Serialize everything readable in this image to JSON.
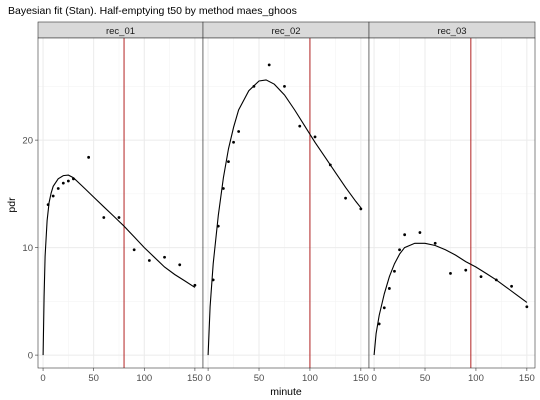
{
  "chart_data": {
    "type": "scatter",
    "title": "Bayesian fit (Stan). Half-emptying t50 by method maes_ghoos",
    "xlabel": "minute",
    "ylabel": "pdr",
    "xlim": [
      -5,
      158
    ],
    "ylim": [
      -1.2,
      29.5
    ],
    "x_ticks": [
      0,
      50,
      100,
      150
    ],
    "y_ticks": [
      0,
      10,
      20
    ],
    "grid": true,
    "colors": {
      "points": "#000000",
      "fit": "#000000",
      "t50_line": "#b22222",
      "strip_bg": "#d9d9d9",
      "grid": "#ebebeb"
    },
    "facets": [
      {
        "name": "rec_01",
        "t50": 80,
        "points": [
          [
            5,
            14
          ],
          [
            10,
            14.8
          ],
          [
            15,
            15.5
          ],
          [
            20,
            16
          ],
          [
            25,
            16.2
          ],
          [
            30,
            16.4
          ],
          [
            45,
            18.4
          ],
          [
            60,
            12.8
          ],
          [
            75,
            12.8
          ],
          [
            90,
            9.8
          ],
          [
            105,
            8.8
          ],
          [
            120,
            9.1
          ],
          [
            135,
            8.4
          ],
          [
            150,
            6.5
          ]
        ],
        "fit": [
          [
            0,
            0
          ],
          [
            1,
            5.5
          ],
          [
            2,
            9.2
          ],
          [
            4,
            12.5
          ],
          [
            6,
            14.2
          ],
          [
            8,
            15.1
          ],
          [
            10,
            15.7
          ],
          [
            15,
            16.4
          ],
          [
            20,
            16.7
          ],
          [
            25,
            16.75
          ],
          [
            30,
            16.5
          ],
          [
            40,
            15.6
          ],
          [
            50,
            14.7
          ],
          [
            60,
            13.8
          ],
          [
            70,
            12.9
          ],
          [
            80,
            12
          ],
          [
            90,
            11
          ],
          [
            100,
            10
          ],
          [
            110,
            9.1
          ],
          [
            120,
            8.2
          ],
          [
            130,
            7.5
          ],
          [
            140,
            6.9
          ],
          [
            150,
            6.3
          ]
        ]
      },
      {
        "name": "rec_02",
        "t50": 100,
        "points": [
          [
            5,
            7
          ],
          [
            10,
            12
          ],
          [
            15,
            15.5
          ],
          [
            20,
            18
          ],
          [
            25,
            19.8
          ],
          [
            30,
            20.8
          ],
          [
            45,
            25
          ],
          [
            60,
            27
          ],
          [
            75,
            25
          ],
          [
            90,
            21.3
          ],
          [
            105,
            20.3
          ],
          [
            120,
            17.7
          ],
          [
            135,
            14.6
          ],
          [
            150,
            13.6
          ]
        ],
        "fit": [
          [
            0,
            0
          ],
          [
            2,
            4.5
          ],
          [
            5,
            8.5
          ],
          [
            10,
            13
          ],
          [
            15,
            16.5
          ],
          [
            20,
            19.2
          ],
          [
            25,
            21.2
          ],
          [
            30,
            22.8
          ],
          [
            40,
            24.6
          ],
          [
            50,
            25.5
          ],
          [
            57,
            25.6
          ],
          [
            65,
            25.2
          ],
          [
            75,
            24.2
          ],
          [
            85,
            22.8
          ],
          [
            95,
            21.3
          ],
          [
            105,
            19.8
          ],
          [
            115,
            18.4
          ],
          [
            125,
            17
          ],
          [
            135,
            15.6
          ],
          [
            145,
            14.3
          ],
          [
            150,
            13.7
          ]
        ]
      },
      {
        "name": "rec_03",
        "t50": 95,
        "points": [
          [
            5,
            2.9
          ],
          [
            10,
            4.4
          ],
          [
            15,
            6.2
          ],
          [
            20,
            7.8
          ],
          [
            25,
            9.8
          ],
          [
            30,
            11.2
          ],
          [
            45,
            11.4
          ],
          [
            60,
            10.4
          ],
          [
            75,
            7.6
          ],
          [
            90,
            7.9
          ],
          [
            105,
            7.3
          ],
          [
            120,
            7
          ],
          [
            135,
            6.4
          ],
          [
            150,
            4.5
          ]
        ],
        "fit": [
          [
            0,
            0
          ],
          [
            2,
            2
          ],
          [
            5,
            3.7
          ],
          [
            10,
            5.7
          ],
          [
            15,
            7.3
          ],
          [
            20,
            8.5
          ],
          [
            25,
            9.4
          ],
          [
            30,
            10
          ],
          [
            40,
            10.4
          ],
          [
            50,
            10.4
          ],
          [
            60,
            10.2
          ],
          [
            70,
            9.8
          ],
          [
            80,
            9.3
          ],
          [
            90,
            8.7
          ],
          [
            100,
            8.2
          ],
          [
            110,
            7.6
          ],
          [
            120,
            7
          ],
          [
            130,
            6.3
          ],
          [
            140,
            5.6
          ],
          [
            150,
            4.9
          ]
        ]
      }
    ]
  }
}
